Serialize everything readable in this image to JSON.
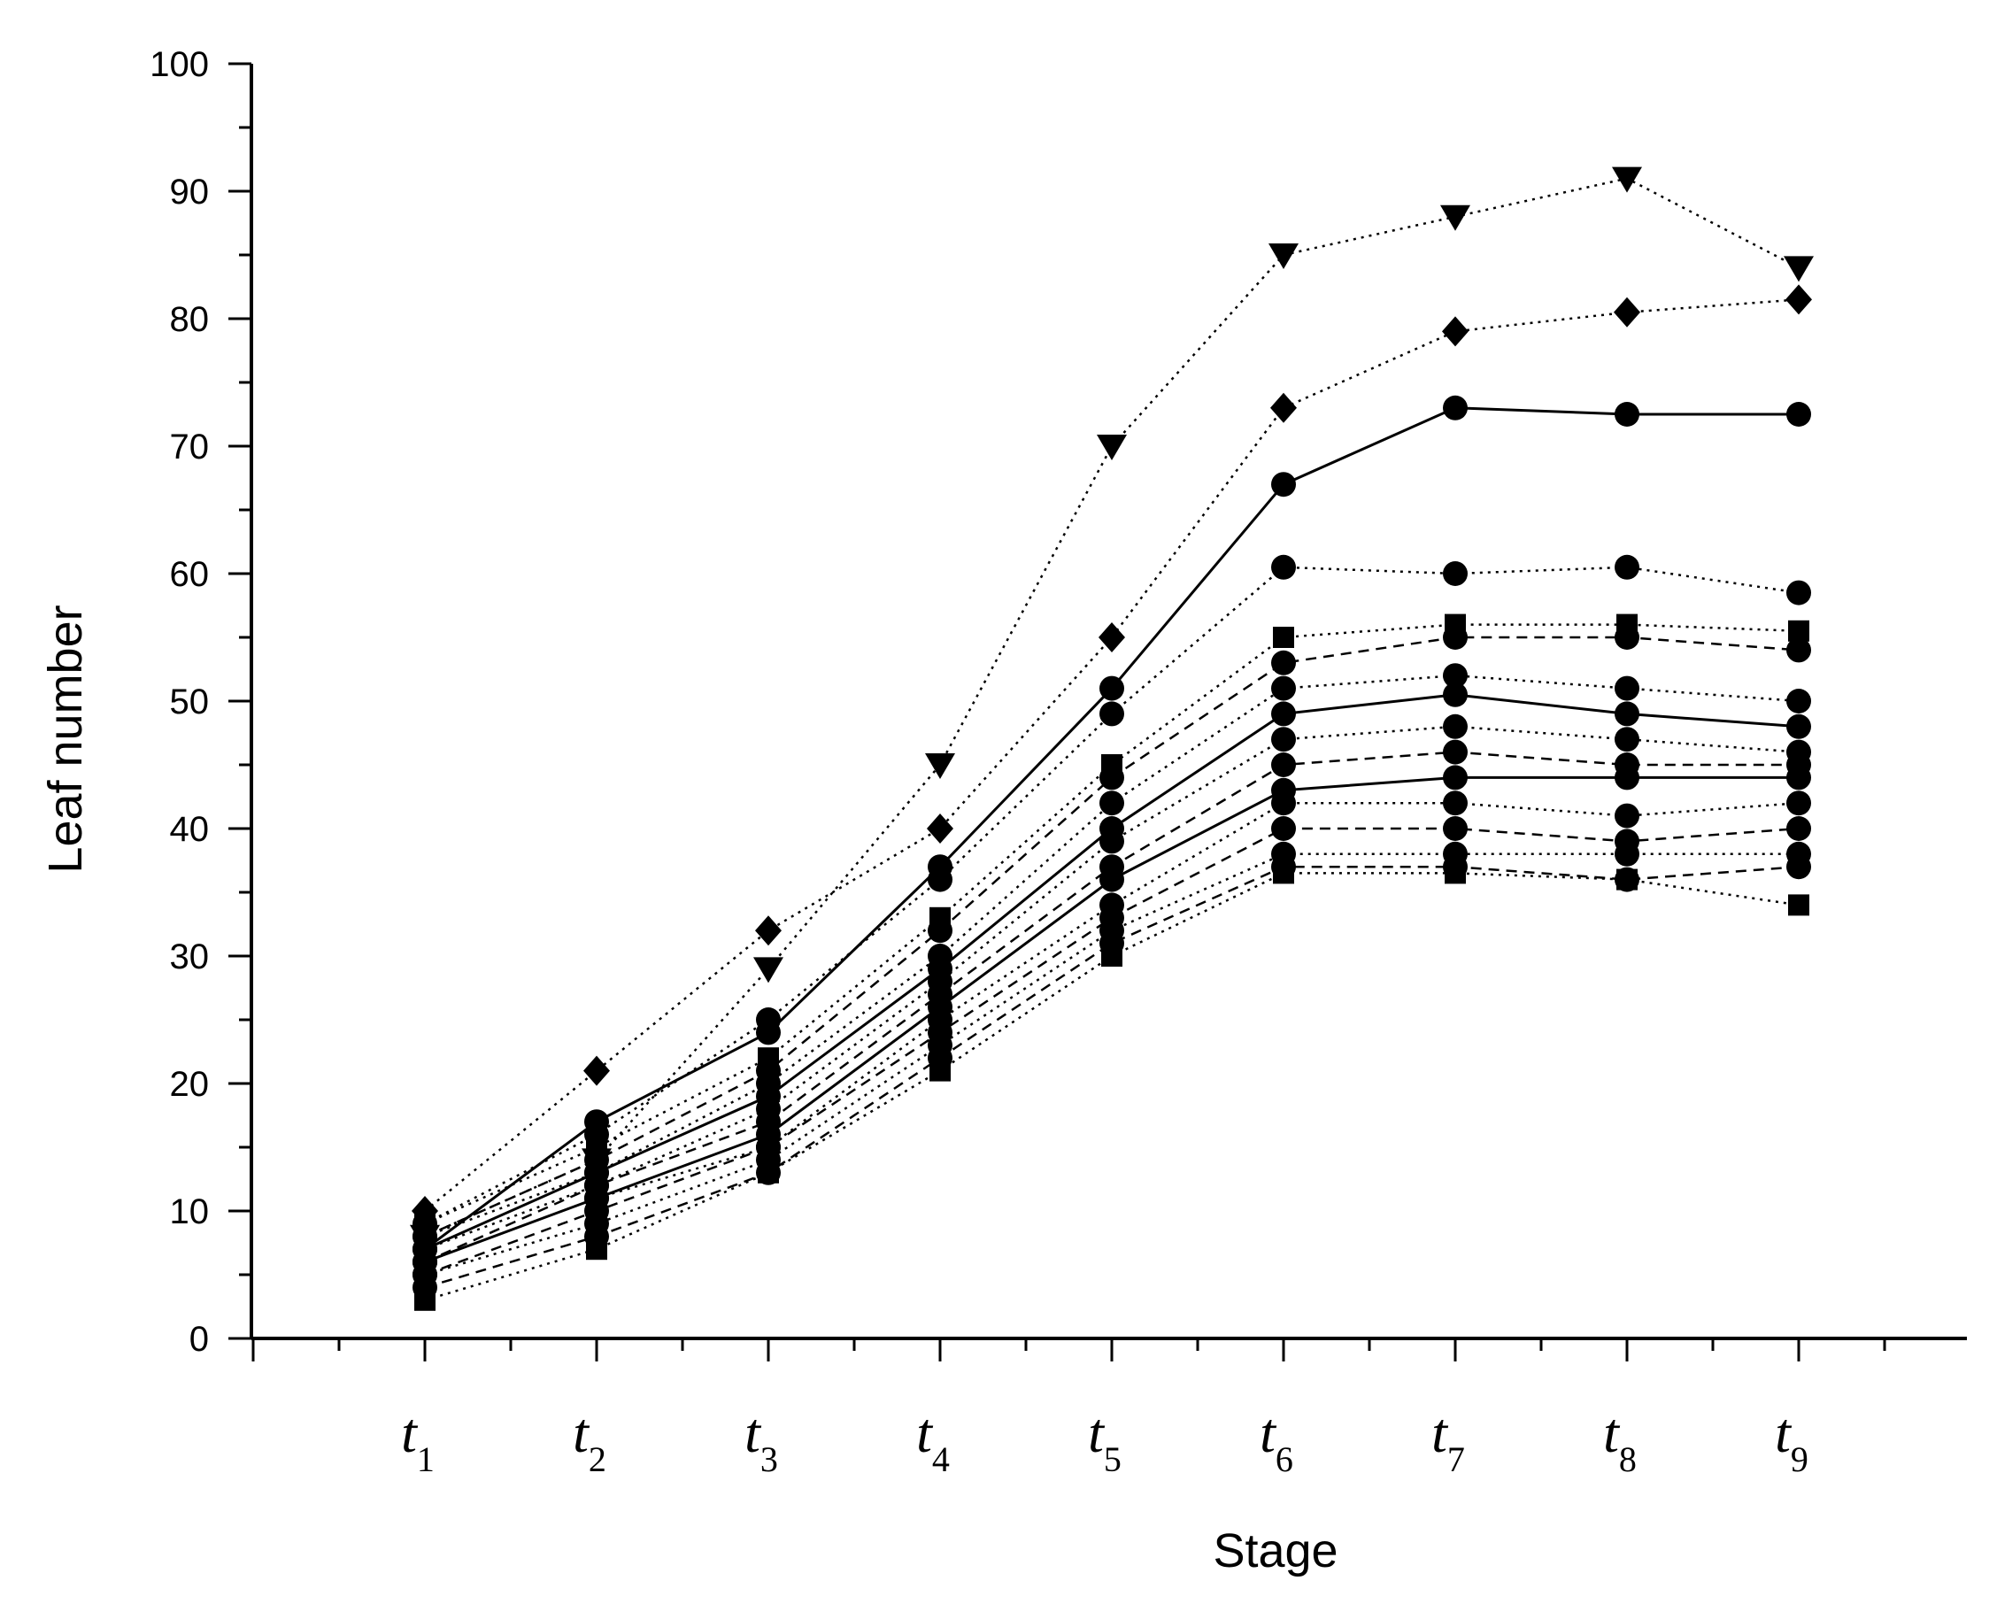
{
  "chart_data": {
    "type": "line",
    "title": "",
    "xlabel": "Stage",
    "ylabel": "Leaf number",
    "ylim": [
      0,
      100
    ],
    "yticks": [
      "0",
      "10",
      "20",
      "30",
      "40",
      "50",
      "60",
      "70",
      "80",
      "90",
      "100"
    ],
    "grid": false,
    "legend": "none",
    "categories": [
      {
        "base": "t",
        "sub": "1"
      },
      {
        "base": "t",
        "sub": "2"
      },
      {
        "base": "t",
        "sub": "3"
      },
      {
        "base": "t",
        "sub": "4"
      },
      {
        "base": "t",
        "sub": "5"
      },
      {
        "base": "t",
        "sub": "6"
      },
      {
        "base": "t",
        "sub": "7"
      },
      {
        "base": "t",
        "sub": "8"
      },
      {
        "base": "t",
        "sub": "9"
      }
    ],
    "series": [
      {
        "marker": "triangle-down",
        "line": "dotted",
        "values": [
          8,
          14,
          29,
          45,
          70,
          85,
          88,
          91,
          84
        ]
      },
      {
        "marker": "diamond",
        "line": "dotted",
        "values": [
          10,
          21,
          32,
          40,
          55,
          73,
          79,
          80.5,
          81.5
        ]
      },
      {
        "marker": "circle",
        "line": "solid",
        "values": [
          7,
          17,
          24,
          37,
          51,
          67,
          73,
          72.5,
          72.5
        ]
      },
      {
        "marker": "circle",
        "line": "dotted",
        "values": [
          9,
          16,
          25,
          36,
          49,
          60.5,
          60,
          60.5,
          58.5
        ]
      },
      {
        "marker": "square",
        "line": "dotted",
        "values": [
          9,
          15,
          22,
          33,
          45,
          55,
          56,
          56,
          55.5
        ]
      },
      {
        "marker": "circle",
        "line": "dashed",
        "values": [
          8,
          14,
          21,
          32,
          44,
          53,
          55,
          55,
          54
        ]
      },
      {
        "marker": "circle",
        "line": "dotted",
        "values": [
          8,
          13,
          20,
          30,
          42,
          51,
          52,
          51,
          50
        ]
      },
      {
        "marker": "circle",
        "line": "solid",
        "values": [
          7,
          13,
          19,
          29,
          40,
          49,
          50.5,
          49,
          48
        ]
      },
      {
        "marker": "circle",
        "line": "dotted",
        "values": [
          7,
          12,
          18,
          28,
          39,
          47,
          48,
          47,
          46
        ]
      },
      {
        "marker": "circle",
        "line": "dashed",
        "values": [
          6,
          12,
          17,
          27,
          37,
          45,
          46,
          45,
          45
        ]
      },
      {
        "marker": "circle",
        "line": "solid",
        "values": [
          6,
          11,
          16,
          26,
          36,
          43,
          44,
          44,
          44
        ]
      },
      {
        "marker": "circle",
        "line": "dotted",
        "values": [
          6,
          11,
          15,
          25,
          34,
          42,
          42,
          41,
          42
        ]
      },
      {
        "marker": "circle",
        "line": "dashed",
        "values": [
          5,
          10,
          15,
          24,
          33,
          40,
          40,
          39,
          40
        ]
      },
      {
        "marker": "circle",
        "line": "dotted",
        "values": [
          5,
          9,
          14,
          23,
          32,
          38,
          38,
          38,
          38
        ]
      },
      {
        "marker": "circle",
        "line": "dashed",
        "values": [
          4,
          8,
          13,
          22,
          31,
          37,
          37,
          36,
          37
        ]
      },
      {
        "marker": "square",
        "line": "dotted",
        "values": [
          3,
          7,
          13,
          21,
          30,
          36.5,
          36.5,
          36,
          34
        ]
      }
    ]
  }
}
